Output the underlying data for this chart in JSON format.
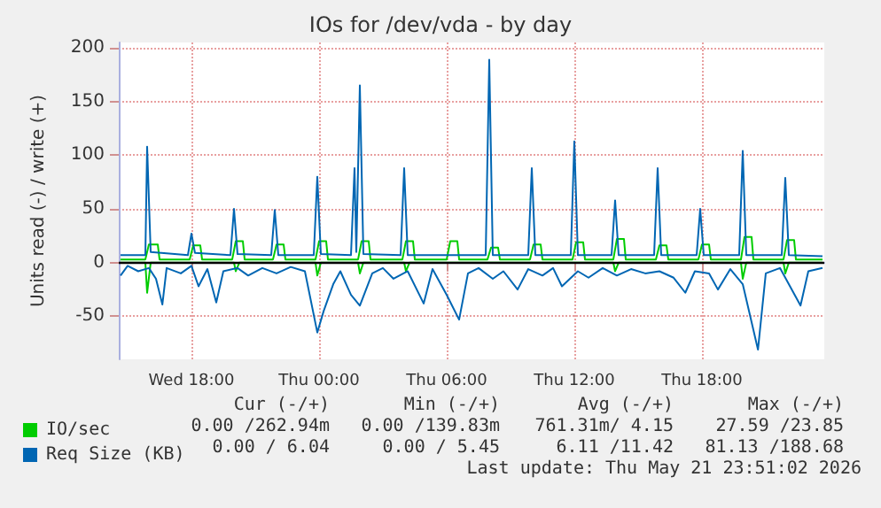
{
  "chart_data": {
    "type": "line",
    "title": "IOs for /dev/vda - by day",
    "ylabel": "Units read (-) / write (+)",
    "xlim": [
      "2026-05-20T14:35",
      "2026-05-21T23:45"
    ],
    "xticks": [
      {
        "value": "2026-05-20T18:00",
        "label": "Wed 18:00"
      },
      {
        "value": "2026-05-21T00:00",
        "label": "Thu 00:00"
      },
      {
        "value": "2026-05-21T06:00",
        "label": "Thu 06:00"
      },
      {
        "value": "2026-05-21T12:00",
        "label": "Thu 12:00"
      },
      {
        "value": "2026-05-21T18:00",
        "label": "Thu 18:00"
      }
    ],
    "ylim": [
      -90,
      205
    ],
    "yticks": [
      -50,
      0,
      50,
      100,
      150,
      200
    ],
    "grid": true,
    "legend": "bottom left",
    "marker": "none",
    "line_style": "solid",
    "ref_lines": [
      {
        "axis": "y",
        "value": 0,
        "color": "#000000"
      }
    ],
    "series": [
      {
        "name": "IO/sec",
        "color": "#00cc00",
        "x": [
          "2026-05-20T14:40",
          "2026-05-20T15:50",
          "2026-05-20T16:00",
          "2026-05-20T16:25",
          "2026-05-20T16:30",
          "2026-05-20T17:55",
          "2026-05-20T18:05",
          "2026-05-20T18:25",
          "2026-05-20T18:30",
          "2026-05-20T19:55",
          "2026-05-20T20:05",
          "2026-05-20T20:25",
          "2026-05-20T20:30",
          "2026-05-20T21:50",
          "2026-05-20T22:00",
          "2026-05-20T22:20",
          "2026-05-20T22:25",
          "2026-05-20T23:50",
          "2026-05-21T00:00",
          "2026-05-21T00:20",
          "2026-05-21T00:25",
          "2026-05-21T01:50",
          "2026-05-21T02:00",
          "2026-05-21T02:20",
          "2026-05-21T02:25",
          "2026-05-21T03:55",
          "2026-05-21T04:05",
          "2026-05-21T04:25",
          "2026-05-21T04:30",
          "2026-05-21T06:00",
          "2026-05-21T06:10",
          "2026-05-21T06:30",
          "2026-05-21T06:35",
          "2026-05-21T07:55",
          "2026-05-21T08:05",
          "2026-05-21T08:25",
          "2026-05-21T08:30",
          "2026-05-21T09:55",
          "2026-05-21T10:05",
          "2026-05-21T10:25",
          "2026-05-21T10:30",
          "2026-05-21T11:55",
          "2026-05-21T12:05",
          "2026-05-21T12:25",
          "2026-05-21T12:30",
          "2026-05-21T13:50",
          "2026-05-21T14:00",
          "2026-05-21T14:20",
          "2026-05-21T14:25",
          "2026-05-21T15:50",
          "2026-05-21T16:00",
          "2026-05-21T16:20",
          "2026-05-21T16:25",
          "2026-05-21T17:50",
          "2026-05-21T18:00",
          "2026-05-21T18:20",
          "2026-05-21T18:25",
          "2026-05-21T19:50",
          "2026-05-21T20:00",
          "2026-05-21T20:20",
          "2026-05-21T20:25",
          "2026-05-21T21:50",
          "2026-05-21T22:00",
          "2026-05-21T22:20",
          "2026-05-21T22:25",
          "2026-05-21T23:40"
        ],
        "values": [
          3,
          3,
          17,
          17,
          3,
          3,
          16,
          16,
          3,
          3,
          20,
          20,
          3,
          3,
          17,
          17,
          3,
          3,
          20,
          20,
          3,
          3,
          20,
          20,
          3,
          3,
          20,
          20,
          3,
          3,
          20,
          20,
          3,
          3,
          14,
          14,
          3,
          3,
          17,
          17,
          3,
          3,
          19,
          19,
          3,
          3,
          22,
          22,
          3,
          3,
          16,
          16,
          3,
          3,
          17,
          17,
          3,
          3,
          24,
          24,
          3,
          3,
          21,
          21,
          3,
          3
        ]
      },
      {
        "color": "#00cc00",
        "x": [
          "2026-05-20T14:40",
          "2026-05-20T15:50",
          "2026-05-20T15:55",
          "2026-05-20T16:05",
          "2026-05-20T20:00",
          "2026-05-20T20:05",
          "2026-05-20T20:15",
          "2026-05-20T23:50",
          "2026-05-20T23:55",
          "2026-05-21T00:05",
          "2026-05-21T01:50",
          "2026-05-21T01:55",
          "2026-05-21T02:05",
          "2026-05-21T04:00",
          "2026-05-21T04:05",
          "2026-05-21T04:15",
          "2026-05-21T13:50",
          "2026-05-21T13:55",
          "2026-05-21T14:05",
          "2026-05-21T19:50",
          "2026-05-21T19:55",
          "2026-05-21T20:05",
          "2026-05-21T21:50",
          "2026-05-21T21:55",
          "2026-05-21T22:05",
          "2026-05-21T23:40"
        ],
        "values": [
          0,
          0,
          -28,
          0,
          0,
          -8,
          0,
          0,
          -12,
          0,
          0,
          -10,
          0,
          0,
          -8,
          0,
          0,
          -8,
          0,
          0,
          -15,
          0,
          0,
          -10,
          0,
          0
        ]
      },
      {
        "name": "Req Size (KB)",
        "color": "#0066b3",
        "x": [
          "2026-05-20T14:40",
          "2026-05-20T15:50",
          "2026-05-20T15:55",
          "2026-05-20T16:05",
          "2026-05-20T17:50",
          "2026-05-20T18:00",
          "2026-05-20T18:10",
          "2026-05-20T19:50",
          "2026-05-20T20:00",
          "2026-05-20T20:10",
          "2026-05-20T21:45",
          "2026-05-20T21:55",
          "2026-05-20T22:05",
          "2026-05-20T23:45",
          "2026-05-20T23:55",
          "2026-05-21T00:05",
          "2026-05-21T01:30",
          "2026-05-21T01:40",
          "2026-05-21T01:45",
          "2026-05-21T01:55",
          "2026-05-21T02:05",
          "2026-05-21T03:50",
          "2026-05-21T04:00",
          "2026-05-21T04:10",
          "2026-05-21T07:50",
          "2026-05-21T08:00",
          "2026-05-21T08:10",
          "2026-05-21T09:50",
          "2026-05-21T10:00",
          "2026-05-21T10:10",
          "2026-05-21T11:50",
          "2026-05-21T12:00",
          "2026-05-21T12:10",
          "2026-05-21T13:45",
          "2026-05-21T13:55",
          "2026-05-21T14:05",
          "2026-05-21T15:45",
          "2026-05-21T15:55",
          "2026-05-21T16:05",
          "2026-05-21T17:45",
          "2026-05-21T17:55",
          "2026-05-21T18:05",
          "2026-05-21T19:45",
          "2026-05-21T19:55",
          "2026-05-21T20:05",
          "2026-05-21T21:45",
          "2026-05-21T21:55",
          "2026-05-21T22:05",
          "2026-05-21T23:40"
        ],
        "values": [
          7,
          7,
          108,
          10,
          7,
          27,
          9,
          7,
          50,
          8,
          7,
          49,
          7,
          7,
          80,
          8,
          7,
          88,
          10,
          165,
          8,
          7,
          88,
          7,
          7,
          189,
          7,
          7,
          88,
          7,
          7,
          113,
          7,
          7,
          58,
          7,
          7,
          88,
          7,
          7,
          50,
          7,
          7,
          104,
          7,
          7,
          79,
          7,
          6
        ]
      },
      {
        "color": "#0066b3",
        "x": [
          "2026-05-20T14:40",
          "2026-05-20T15:00",
          "2026-05-20T15:30",
          "2026-05-20T16:00",
          "2026-05-20T16:20",
          "2026-05-20T16:38",
          "2026-05-20T16:50",
          "2026-05-20T17:30",
          "2026-05-20T18:00",
          "2026-05-20T18:20",
          "2026-05-20T18:45",
          "2026-05-20T19:10",
          "2026-05-20T19:30",
          "2026-05-20T20:10",
          "2026-05-20T20:40",
          "2026-05-20T21:20",
          "2026-05-20T22:00",
          "2026-05-20T22:40",
          "2026-05-20T23:20",
          "2026-05-20T23:55",
          "2026-05-21T00:13",
          "2026-05-21T00:40",
          "2026-05-21T01:00",
          "2026-05-21T01:30",
          "2026-05-21T01:55",
          "2026-05-21T02:30",
          "2026-05-21T03:00",
          "2026-05-21T03:30",
          "2026-05-21T04:10",
          "2026-05-21T04:55",
          "2026-05-21T05:20",
          "2026-05-21T06:00",
          "2026-05-21T06:35",
          "2026-05-21T07:00",
          "2026-05-21T07:30",
          "2026-05-21T08:10",
          "2026-05-21T08:40",
          "2026-05-21T09:20",
          "2026-05-21T09:50",
          "2026-05-21T10:30",
          "2026-05-21T11:00",
          "2026-05-21T11:25",
          "2026-05-21T12:10",
          "2026-05-21T12:40",
          "2026-05-21T13:20",
          "2026-05-21T14:00",
          "2026-05-21T14:40",
          "2026-05-21T15:20",
          "2026-05-21T16:00",
          "2026-05-21T16:40",
          "2026-05-21T17:13",
          "2026-05-21T17:40",
          "2026-05-21T18:20",
          "2026-05-21T18:45",
          "2026-05-21T19:20",
          "2026-05-21T19:55",
          "2026-05-21T20:38",
          "2026-05-21T21:00",
          "2026-05-21T21:40",
          "2026-05-21T22:38",
          "2026-05-21T23:00",
          "2026-05-21T23:40"
        ],
        "values": [
          -12,
          -3,
          -8,
          -5,
          -15,
          -39,
          -5,
          -10,
          -3,
          -22,
          -6,
          -37,
          -8,
          -5,
          -12,
          -5,
          -10,
          -4,
          -8,
          -65,
          -45,
          -20,
          -8,
          -30,
          -40,
          -10,
          -5,
          -15,
          -8,
          -38,
          -6,
          -30,
          -53,
          -10,
          -5,
          -15,
          -8,
          -25,
          -6,
          -12,
          -5,
          -22,
          -8,
          -14,
          -5,
          -12,
          -6,
          -10,
          -8,
          -14,
          -28,
          -8,
          -10,
          -25,
          -6,
          -20,
          -81,
          -10,
          -5,
          -40,
          -8,
          -5
        ]
      }
    ],
    "annotations": [
      "Cur (-/+)",
      "Min (-/+)",
      "Avg (-/+)",
      "Max (-/+)",
      "0.00 /262.94m",
      "0.00 /139.83m",
      "761.31m/ 4.15",
      "27.59 /23.85",
      "0.00 / 6.04",
      "0.00 / 5.45",
      "6.11 /11.42",
      "81.13 /188.68",
      "Last update: Thu May 21 23:51:02 2026"
    ]
  }
}
